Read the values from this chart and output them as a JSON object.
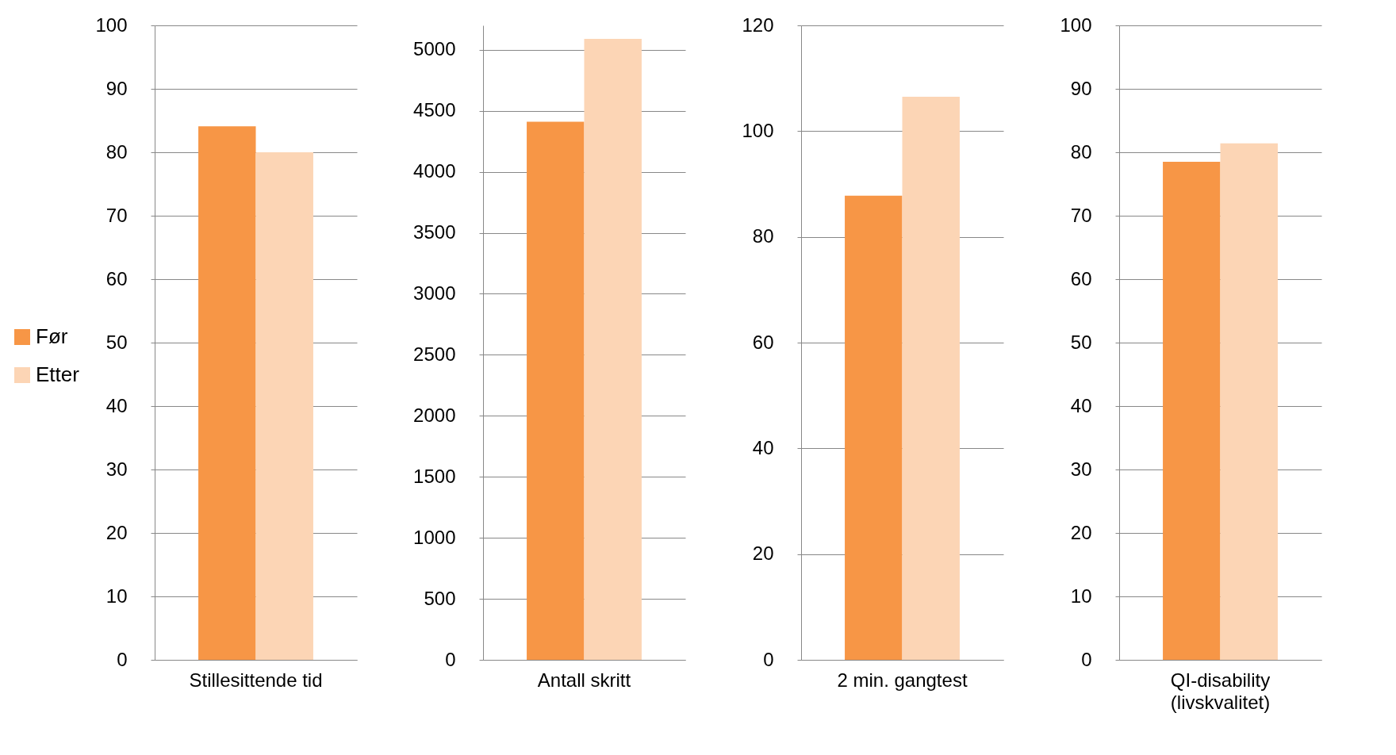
{
  "chart_data": [
    {
      "type": "bar",
      "categories": [
        "Stillesittende tid"
      ],
      "series": [
        {
          "name": "Før",
          "color": "#f79646",
          "values": [
            84.1
          ]
        },
        {
          "name": "Etter",
          "color": "#fcd5b5",
          "values": [
            80.0
          ]
        }
      ],
      "ylim": [
        0,
        100
      ],
      "yticks": [
        0,
        10,
        20,
        30,
        40,
        50,
        60,
        70,
        80,
        90,
        100
      ],
      "grid": "y",
      "legend": "left"
    },
    {
      "type": "bar",
      "categories": [
        "Antall skritt"
      ],
      "series": [
        {
          "name": "Før",
          "color": "#f79646",
          "values": [
            4410
          ]
        },
        {
          "name": "Etter",
          "color": "#fcd5b5",
          "values": [
            5090
          ]
        }
      ],
      "ylim": [
        0,
        5200
      ],
      "yticks": [
        0,
        500,
        1000,
        1500,
        2000,
        2500,
        3000,
        3500,
        4000,
        4500,
        5000
      ],
      "grid": "y"
    },
    {
      "type": "bar",
      "categories": [
        "2 min. gangtest"
      ],
      "series": [
        {
          "name": "Før",
          "color": "#f79646",
          "values": [
            87.8
          ]
        },
        {
          "name": "Etter",
          "color": "#fcd5b5",
          "values": [
            106.5
          ]
        }
      ],
      "ylim": [
        0,
        120
      ],
      "yticks": [
        0,
        20,
        40,
        60,
        80,
        100,
        120
      ],
      "grid": "y"
    },
    {
      "type": "bar",
      "categories": [
        "QI-disability (livskvalitet)"
      ],
      "series": [
        {
          "name": "Før",
          "color": "#f79646",
          "values": [
            78.5
          ]
        },
        {
          "name": "Etter",
          "color": "#fcd5b5",
          "values": [
            81.4
          ]
        }
      ],
      "ylim": [
        0,
        100
      ],
      "yticks": [
        0,
        10,
        20,
        30,
        40,
        50,
        60,
        70,
        80,
        90,
        100
      ],
      "grid": "y"
    }
  ]
}
